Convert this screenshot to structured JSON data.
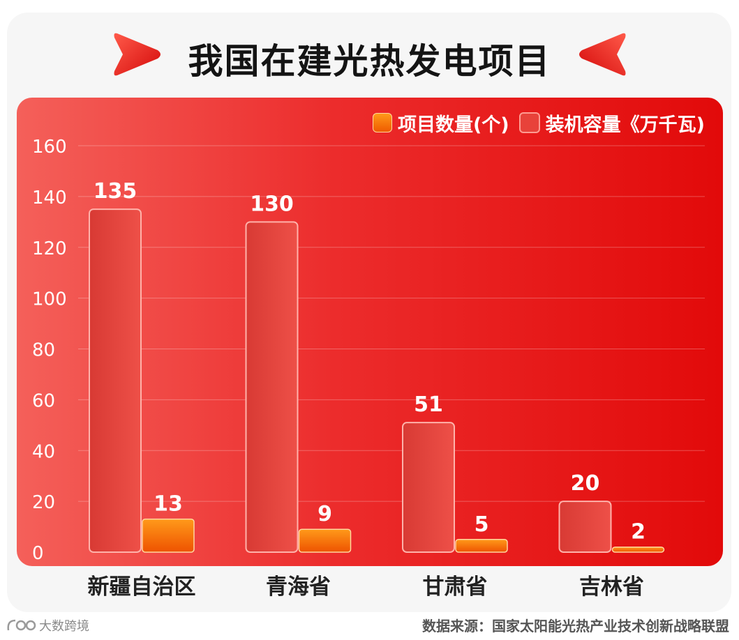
{
  "title": "我国在建光热发电项目",
  "colors": {
    "projects": "#f57a10",
    "capacity": "#e8423a",
    "panel": "#e8201e"
  },
  "legend": {
    "projects": "项目数量(个)",
    "capacity": "装机容量《万千瓦)"
  },
  "footer": {
    "source": "数据来源：国家太阳能光热产业技术创新战略联盟",
    "brand": "大数跨境"
  },
  "chart_data": {
    "type": "bar",
    "categories": [
      "新疆自治区",
      "青海省",
      "甘肃省",
      "吉林省"
    ],
    "series": [
      {
        "name": "装机容量《万千瓦)",
        "values": [
          135,
          130,
          51,
          20
        ]
      },
      {
        "name": "项目数量(个)",
        "values": [
          13,
          9,
          5,
          2
        ]
      }
    ],
    "yticks": [
      0,
      20,
      40,
      60,
      80,
      100,
      120,
      140,
      160
    ],
    "ylim": [
      0,
      160
    ],
    "grid": true,
    "legend_position": "top-right"
  }
}
